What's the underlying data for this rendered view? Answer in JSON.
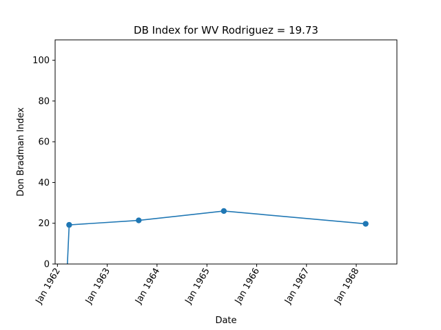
{
  "chart_data": {
    "type": "line",
    "title": "DB Index for WV Rodriguez = 19.73",
    "xlabel": "Date",
    "ylabel": "Don Bradman Index",
    "ylim": [
      0,
      110
    ],
    "xlim": [
      "1961-12-15",
      "1968-10-25"
    ],
    "y_ticks": [
      0,
      20,
      40,
      60,
      80,
      100
    ],
    "x_ticks": [
      {
        "date": "1962-01-01",
        "label": "Jan 1962"
      },
      {
        "date": "1963-01-01",
        "label": "Jan 1963"
      },
      {
        "date": "1964-01-01",
        "label": "Jan 1964"
      },
      {
        "date": "1965-01-01",
        "label": "Jan 1965"
      },
      {
        "date": "1966-01-01",
        "label": "Jan 1966"
      },
      {
        "date": "1967-01-01",
        "label": "Jan 1967"
      },
      {
        "date": "1968-01-01",
        "label": "Jan 1968"
      }
    ],
    "grid": false,
    "legend": "none",
    "series": [
      {
        "color": "#1f77b4",
        "points": [
          {
            "x": "1962-03-15",
            "y": 0,
            "marker": false
          },
          {
            "x": "1962-03-28",
            "y": 19.2,
            "marker": true
          },
          {
            "x": "1963-08-20",
            "y": 21.4,
            "marker": true
          },
          {
            "x": "1965-05-05",
            "y": 26.0,
            "marker": true
          },
          {
            "x": "1968-03-10",
            "y": 19.73,
            "marker": true
          }
        ]
      }
    ]
  }
}
